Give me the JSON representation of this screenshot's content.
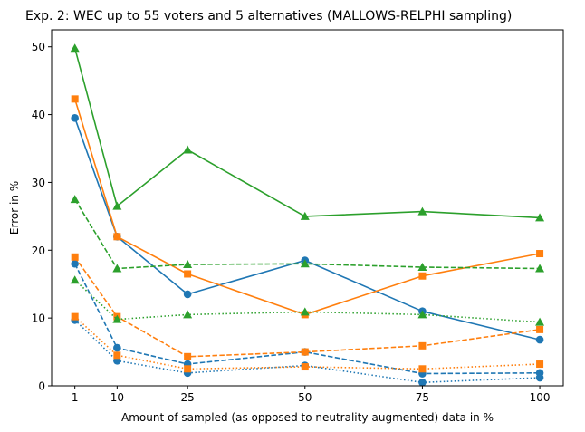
{
  "chart_data": {
    "type": "line",
    "title": "Exp. 2: WEC up to 55 voters and 5 alternatives (MALLOWS-RELPHI sampling)",
    "xlabel": "Amount of sampled (as opposed to neutrality-augmented) data in %",
    "ylabel": "Error in %",
    "x": [
      1,
      10,
      25,
      50,
      75,
      100
    ],
    "xticks": [
      "1",
      "10",
      "25",
      "50",
      "75",
      "100"
    ],
    "yticks": [
      0,
      10,
      20,
      30,
      40,
      50
    ],
    "xlim": [
      -3.95,
      105
    ],
    "ylim": [
      0,
      52.5
    ],
    "grid": false,
    "series": [
      {
        "name": "blue-solid",
        "color": "#1f77b4",
        "style": "solid",
        "marker": "circle",
        "values": [
          39.5,
          22.0,
          13.5,
          18.5,
          11.0,
          6.8
        ]
      },
      {
        "name": "blue-dashed",
        "color": "#1f77b4",
        "style": "dashed",
        "marker": "circle",
        "values": [
          18.0,
          5.6,
          3.2,
          5.0,
          1.8,
          1.9
        ]
      },
      {
        "name": "blue-dotted",
        "color": "#1f77b4",
        "style": "dotted",
        "marker": "circle",
        "values": [
          9.7,
          3.7,
          1.9,
          3.0,
          0.5,
          1.2
        ]
      },
      {
        "name": "orange-solid",
        "color": "#ff7f0e",
        "style": "solid",
        "marker": "square",
        "values": [
          42.3,
          22.0,
          16.5,
          10.5,
          16.2,
          19.5
        ]
      },
      {
        "name": "orange-dashed",
        "color": "#ff7f0e",
        "style": "dashed",
        "marker": "square",
        "values": [
          19.0,
          10.2,
          4.3,
          5.0,
          5.9,
          8.3
        ]
      },
      {
        "name": "orange-dotted",
        "color": "#ff7f0e",
        "style": "dotted",
        "marker": "square",
        "values": [
          10.2,
          4.5,
          2.5,
          2.8,
          2.5,
          3.2
        ]
      },
      {
        "name": "green-solid",
        "color": "#2ca02c",
        "style": "solid",
        "marker": "triangle",
        "values": [
          49.8,
          26.5,
          34.8,
          25.0,
          25.7,
          24.8
        ]
      },
      {
        "name": "green-dashed",
        "color": "#2ca02c",
        "style": "dashed",
        "marker": "triangle",
        "values": [
          27.5,
          17.3,
          17.9,
          18.0,
          17.5,
          17.3
        ]
      },
      {
        "name": "green-dotted",
        "color": "#2ca02c",
        "style": "dotted",
        "marker": "triangle",
        "values": [
          15.6,
          9.8,
          10.5,
          10.9,
          10.5,
          9.4
        ]
      }
    ]
  }
}
